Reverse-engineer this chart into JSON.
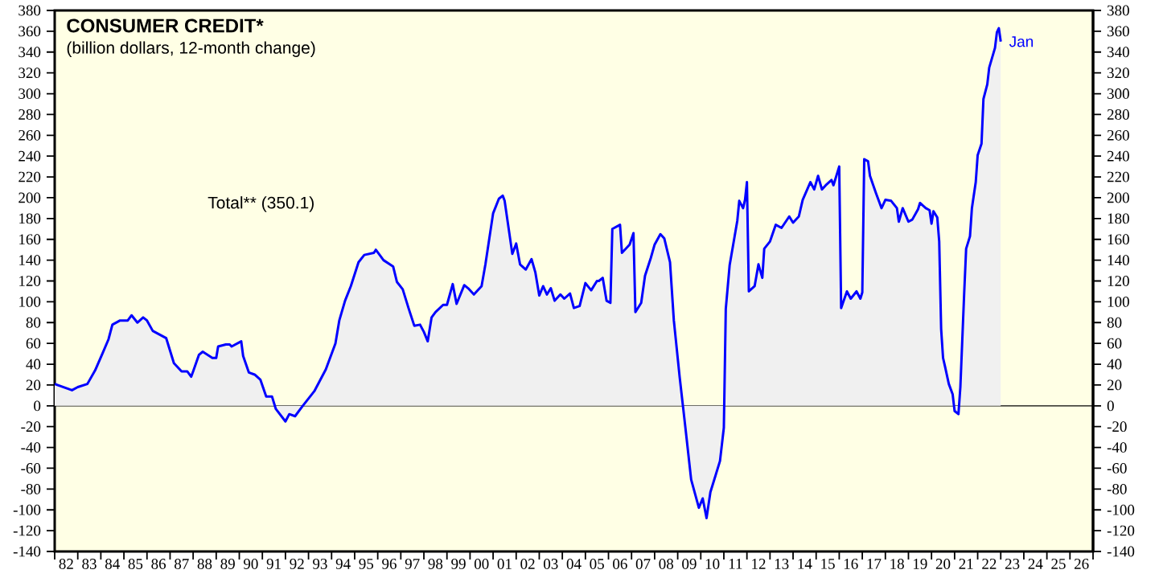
{
  "chart_data": {
    "type": "area",
    "title": "CONSUMER CREDIT*",
    "subtitle": "(billion dollars, 12-month change)",
    "annotations": [
      "Total** (350.1)",
      {
        "text": "Jan",
        "x": "2023-01",
        "y": 350
      }
    ],
    "x": [
      "1982-01",
      "1982-10",
      "1983-01",
      "1983-06",
      "1983-10",
      "1984-02",
      "1984-05",
      "1984-07",
      "1984-11",
      "1985-03",
      "1985-05",
      "1985-08",
      "1985-11",
      "1986-01",
      "1986-04",
      "1986-11",
      "1987-03",
      "1987-07",
      "1987-10",
      "1987-12",
      "1988-01",
      "1988-04",
      "1988-06",
      "1988-11",
      "1989-01",
      "1989-02",
      "1989-06",
      "1989-08",
      "1989-09",
      "1990-02",
      "1990-03",
      "1990-06",
      "1990-09",
      "1990-12",
      "1991-03",
      "1991-06",
      "1991-08",
      "1992-01",
      "1992-03",
      "1992-06",
      "1992-10",
      "1993-04",
      "1993-10",
      "1994-03",
      "1994-05",
      "1994-08",
      "1994-11",
      "1995-03",
      "1995-06",
      "1995-11",
      "1995-12",
      "1996-04",
      "1996-09",
      "1996-11",
      "1997-02",
      "1997-05",
      "1997-08",
      "1997-11",
      "1998-01",
      "1998-03",
      "1998-05",
      "1998-07",
      "1998-11",
      "1999-01",
      "1999-04",
      "1999-06",
      "1999-10",
      "1999-12",
      "2000-03",
      "2000-07",
      "2000-09",
      "2001-01",
      "2001-04",
      "2001-06",
      "2001-07",
      "2001-11",
      "2002-01",
      "2002-03",
      "2002-06",
      "2002-09",
      "2002-11",
      "2003-01",
      "2003-03",
      "2003-05",
      "2003-07",
      "2003-09",
      "2003-12",
      "2004-02",
      "2004-05",
      "2004-07",
      "2004-10",
      "2005-01",
      "2005-04",
      "2005-07",
      "2005-08",
      "2005-10",
      "2005-12",
      "2006-02",
      "2006-03",
      "2006-07",
      "2006-08",
      "2006-12",
      "2007-02",
      "2007-03",
      "2007-06",
      "2007-08",
      "2007-11",
      "2008-01",
      "2008-04",
      "2008-06",
      "2008-09",
      "2008-11",
      "2009-02",
      "2009-05",
      "2009-08",
      "2009-12",
      "2010-02",
      "2010-04",
      "2010-06",
      "2010-08",
      "2010-11",
      "2011-01",
      "2011-02",
      "2011-04",
      "2011-08",
      "2011-09",
      "2011-11",
      "2011-12",
      "2012-01",
      "2012-02",
      "2012-05",
      "2012-07",
      "2012-09",
      "2012-10",
      "2013-01",
      "2013-04",
      "2013-07",
      "2013-11",
      "2014-01",
      "2014-04",
      "2014-06",
      "2014-10",
      "2014-12",
      "2015-02",
      "2015-04",
      "2015-06",
      "2015-09",
      "2015-10",
      "2016-01",
      "2016-02",
      "2016-05",
      "2016-07",
      "2016-10",
      "2016-12",
      "2017-01",
      "2017-02",
      "2017-04",
      "2017-05",
      "2017-08",
      "2017-11",
      "2018-01",
      "2018-04",
      "2018-07",
      "2018-08",
      "2018-10",
      "2019-01",
      "2019-03",
      "2019-06",
      "2019-07",
      "2019-10",
      "2019-12",
      "2020-01",
      "2020-02",
      "2020-04",
      "2020-05",
      "2020-06",
      "2020-07",
      "2020-08",
      "2020-10",
      "2020-12",
      "2021-01",
      "2021-03",
      "2021-04",
      "2021-06",
      "2021-07",
      "2021-09",
      "2021-10",
      "2021-12",
      "2022-01",
      "2022-03",
      "2022-04",
      "2022-06",
      "2022-07",
      "2022-10",
      "2022-11",
      "2022-12",
      "2023-01"
    ],
    "series": [
      {
        "color": "#0000ff",
        "values": [
          21,
          15,
          18,
          21,
          34,
          51,
          64,
          78,
          82,
          82,
          87,
          80,
          85,
          82,
          72,
          65,
          41,
          33,
          33,
          28,
          33,
          49,
          52,
          46,
          46,
          57,
          59,
          59,
          57,
          62,
          48,
          32,
          30,
          25,
          9,
          9,
          -3,
          -15,
          -8,
          -10,
          0,
          14,
          35,
          60,
          82,
          101,
          115,
          138,
          145,
          147,
          150,
          140,
          134,
          119,
          112,
          94,
          77,
          78,
          71,
          62,
          85,
          90,
          97,
          97,
          117,
          98,
          116,
          113,
          107,
          115,
          136,
          185,
          199,
          202,
          197,
          146,
          156,
          136,
          131,
          141,
          128,
          106,
          115,
          107,
          113,
          101,
          107,
          103,
          108,
          94,
          96,
          118,
          111,
          120,
          120,
          123,
          101,
          99,
          170,
          174,
          147,
          155,
          166,
          90,
          99,
          125,
          142,
          155,
          165,
          161,
          138,
          82,
          28,
          -21,
          -71,
          -98,
          -89,
          -108,
          -83,
          -71,
          -53,
          -21,
          93,
          135,
          178,
          197,
          190,
          198,
          215,
          110,
          115,
          136,
          123,
          151,
          158,
          174,
          171,
          182,
          176,
          182,
          198,
          215,
          208,
          221,
          208,
          212,
          217,
          212,
          230,
          94,
          110,
          103,
          110,
          103,
          109,
          237,
          235,
          221,
          205,
          190,
          198,
          197,
          190,
          177,
          190,
          177,
          179,
          189,
          195,
          190,
          188,
          175,
          187,
          181,
          158,
          74,
          46,
          38,
          21,
          11,
          -5,
          -8,
          18,
          109,
          151,
          163,
          190,
          215,
          241,
          252,
          295,
          309,
          325,
          344,
          359,
          363,
          350
        ]
      }
    ],
    "xlim": [
      "1982-01",
      "2027-01"
    ],
    "xticks": [
      {
        "value": "1982-01",
        "label": null
      },
      {
        "value": "1983-01",
        "label": null
      },
      {
        "value": "1984-01",
        "label": null
      },
      {
        "value": "1985-01",
        "label": null
      },
      {
        "value": "1986-01",
        "label": null
      },
      {
        "value": "1987-01",
        "label": null
      },
      {
        "value": "1988-01",
        "label": null
      },
      {
        "value": "1989-01",
        "label": null
      },
      {
        "value": "1990-01",
        "label": null
      },
      {
        "value": "1991-01",
        "label": null
      },
      {
        "value": "1992-01",
        "label": null
      },
      {
        "value": "1993-01",
        "label": null
      },
      {
        "value": "1994-01",
        "label": null
      },
      {
        "value": "1995-01",
        "label": null
      },
      {
        "value": "1996-01",
        "label": null
      },
      {
        "value": "1997-01",
        "label": null
      },
      {
        "value": "1998-01",
        "label": null
      },
      {
        "value": "1999-01",
        "label": null
      },
      {
        "value": "2000-01",
        "label": null
      },
      {
        "value": "2001-01",
        "label": null
      },
      {
        "value": "2002-01",
        "label": null
      },
      {
        "value": "2003-01",
        "label": null
      },
      {
        "value": "2004-01",
        "label": null
      },
      {
        "value": "2005-01",
        "label": null
      },
      {
        "value": "2006-01",
        "label": null
      },
      {
        "value": "2007-01",
        "label": null
      },
      {
        "value": "2008-01",
        "label": null
      },
      {
        "value": "2009-01",
        "label": null
      },
      {
        "value": "2010-01",
        "label": null
      },
      {
        "value": "2011-01",
        "label": null
      },
      {
        "value": "2012-01",
        "label": null
      },
      {
        "value": "2013-01",
        "label": null
      },
      {
        "value": "2014-01",
        "label": null
      },
      {
        "value": "2015-01",
        "label": null
      },
      {
        "value": "2016-01",
        "label": null
      },
      {
        "value": "2017-01",
        "label": null
      },
      {
        "value": "2018-01",
        "label": null
      },
      {
        "value": "2019-01",
        "label": null
      },
      {
        "value": "2020-01",
        "label": null
      },
      {
        "value": "2021-01",
        "label": null
      },
      {
        "value": "2022-01",
        "label": null
      },
      {
        "value": "2023-01",
        "label": null
      },
      {
        "value": "2024-01",
        "label": null
      },
      {
        "value": "2025-01",
        "label": null
      },
      {
        "value": "2026-01",
        "label": null
      },
      {
        "value": "2027-01",
        "label": null
      },
      {
        "value": "1982-07",
        "label": "82"
      },
      {
        "value": "1983-07",
        "label": "83"
      },
      {
        "value": "1984-07",
        "label": "84"
      },
      {
        "value": "1985-07",
        "label": "85"
      },
      {
        "value": "1986-07",
        "label": "86"
      },
      {
        "value": "1987-07",
        "label": "87"
      },
      {
        "value": "1988-07",
        "label": "88"
      },
      {
        "value": "1989-07",
        "label": "89"
      },
      {
        "value": "1990-07",
        "label": "90"
      },
      {
        "value": "1991-07",
        "label": "91"
      },
      {
        "value": "1992-07",
        "label": "92"
      },
      {
        "value": "1993-07",
        "label": "93"
      },
      {
        "value": "1994-07",
        "label": "94"
      },
      {
        "value": "1995-07",
        "label": "95"
      },
      {
        "value": "1996-07",
        "label": "96"
      },
      {
        "value": "1997-07",
        "label": "97"
      },
      {
        "value": "1998-07",
        "label": "98"
      },
      {
        "value": "1999-07",
        "label": "99"
      },
      {
        "value": "2000-07",
        "label": "00"
      },
      {
        "value": "2001-07",
        "label": "01"
      },
      {
        "value": "2002-07",
        "label": "02"
      },
      {
        "value": "2003-07",
        "label": "03"
      },
      {
        "value": "2004-07",
        "label": "04"
      },
      {
        "value": "2005-07",
        "label": "05"
      },
      {
        "value": "2006-07",
        "label": "06"
      },
      {
        "value": "2007-07",
        "label": "07"
      },
      {
        "value": "2008-07",
        "label": "08"
      },
      {
        "value": "2009-07",
        "label": "09"
      },
      {
        "value": "2010-07",
        "label": "10"
      },
      {
        "value": "2011-07",
        "label": "11"
      },
      {
        "value": "2012-07",
        "label": "12"
      },
      {
        "value": "2013-07",
        "label": "13"
      },
      {
        "value": "2014-07",
        "label": "14"
      },
      {
        "value": "2015-07",
        "label": "15"
      },
      {
        "value": "2016-07",
        "label": "16"
      },
      {
        "value": "2017-07",
        "label": "17"
      },
      {
        "value": "2018-07",
        "label": "18"
      },
      {
        "value": "2019-07",
        "label": "19"
      },
      {
        "value": "2020-07",
        "label": "20"
      },
      {
        "value": "2021-07",
        "label": "21"
      },
      {
        "value": "2022-07",
        "label": "22"
      },
      {
        "value": "2023-07",
        "label": "23"
      },
      {
        "value": "2024-07",
        "label": "24"
      },
      {
        "value": "2025-07",
        "label": "25"
      },
      {
        "value": "2026-07",
        "label": "26"
      }
    ],
    "ylim": [
      -140,
      380
    ],
    "yticks": [
      -140,
      -120,
      -100,
      -80,
      -60,
      -40,
      -20,
      0,
      20,
      40,
      60,
      80,
      100,
      120,
      140,
      160,
      180,
      200,
      220,
      240,
      260,
      280,
      300,
      320,
      340,
      360,
      380
    ],
    "y2lim": [
      -140,
      380
    ],
    "y2ticks": [
      -140,
      -120,
      -100,
      -80,
      -60,
      -40,
      -20,
      0,
      20,
      40,
      60,
      80,
      100,
      120,
      140,
      160,
      180,
      200,
      220,
      240,
      260,
      280,
      300,
      320,
      340,
      360,
      380
    ],
    "ref_lines": [
      {
        "axis": "y",
        "value": 0
      }
    ]
  }
}
